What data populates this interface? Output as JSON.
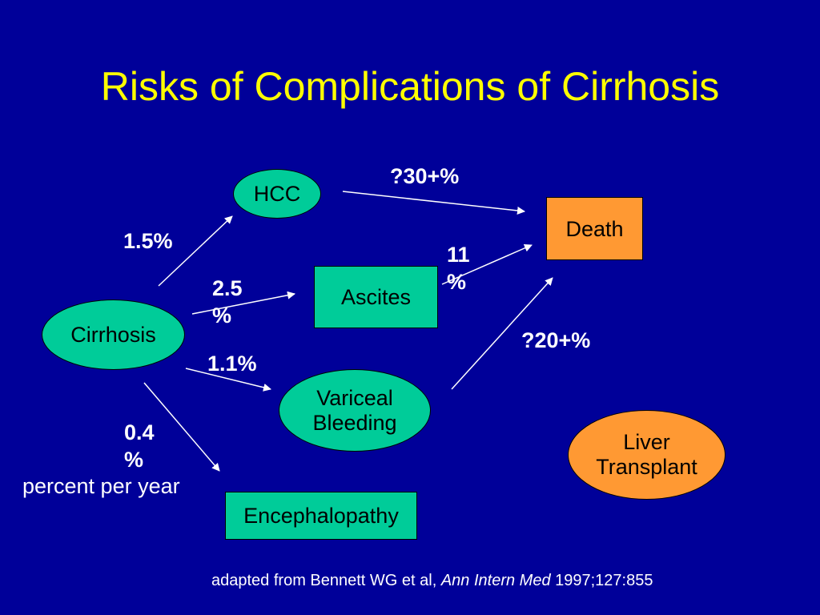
{
  "title": "Risks of Complications of Cirrhosis",
  "nodes": {
    "cirrhosis": "Cirrhosis",
    "hcc": "HCC",
    "ascites": "Ascites",
    "variceal_line1": "Variceal",
    "variceal_line2": "Bleeding",
    "encephalopathy": "Encephalopathy",
    "death": "Death",
    "liver_line1": "Liver",
    "liver_line2": "Transplant"
  },
  "edge_labels": {
    "hcc_rate": "1.5%",
    "ascites_rate_line1": "2.5",
    "ascites_rate_line2": "%",
    "variceal_rate": "1.1%",
    "encephalopathy_rate_line1": "0.4",
    "encephalopathy_rate_line2": "%",
    "hcc_death": "?30+%",
    "ascites_death_line1": "11",
    "ascites_death_line2": "%",
    "variceal_death": "?20+%"
  },
  "unit_note": "percent per year",
  "citation": {
    "prefix": "adapted from Bennett WG et al, ",
    "journal": "Ann Intern Med",
    "suffix": " 1997;127:855"
  },
  "colors": {
    "background": "#000099",
    "title": "#ffff00",
    "green_node": "#00cc99",
    "orange_node": "#ff9933",
    "arrow": "#ffffff"
  }
}
